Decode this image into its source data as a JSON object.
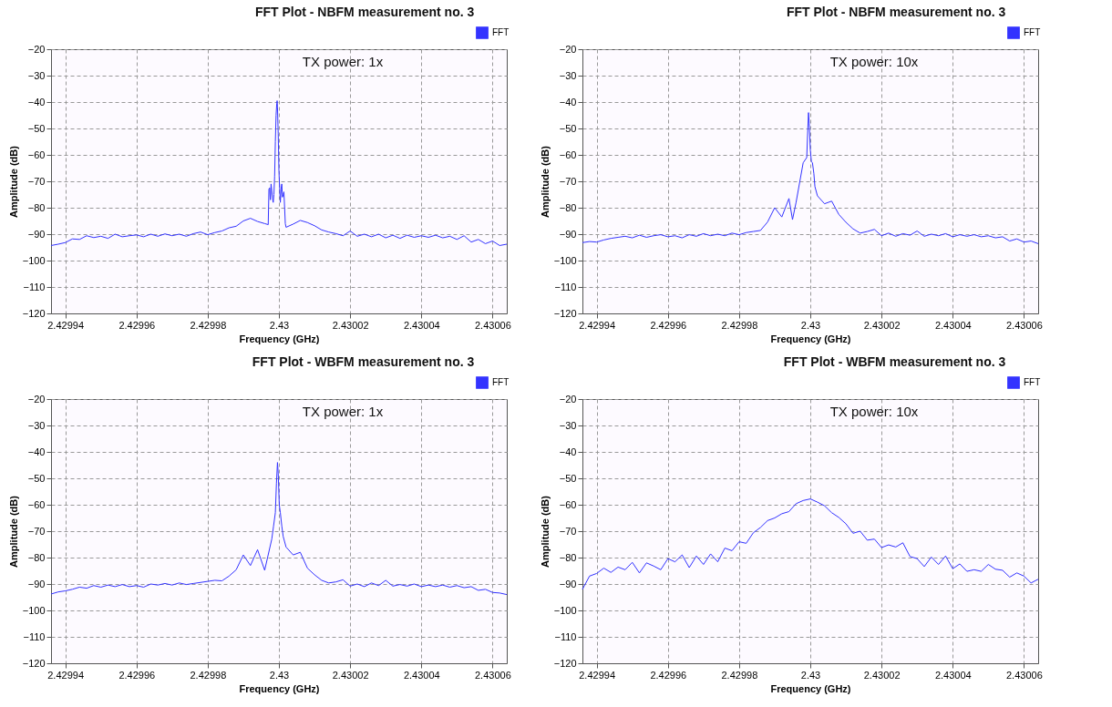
{
  "chart_data": [
    {
      "type": "line",
      "title": "FFT Plot - NBFM measurement no. 3",
      "xlabel": "Frequency (GHz)",
      "ylabel": "Amplitude (dB)",
      "annotations": [
        "TX power: 1x"
      ],
      "legend": "top right",
      "grid": true,
      "marker": "none",
      "line_style": "solid",
      "xlim": [
        2.429936,
        2.430064
      ],
      "ylim": [
        -120,
        -20
      ],
      "xticks": [
        2.42994,
        2.42996,
        2.42998,
        2.43,
        2.43002,
        2.43004,
        2.43006
      ],
      "yticks": [
        -120,
        -110,
        -100,
        -90,
        -80,
        -70,
        -60,
        -50,
        -40,
        -30,
        -20
      ],
      "x": [
        2.429936,
        2.429938,
        2.42994,
        2.429942,
        2.429944,
        2.429946,
        2.429948,
        2.42995,
        2.429952,
        2.429954,
        2.429956,
        2.429958,
        2.42996,
        2.429962,
        2.429964,
        2.429966,
        2.429968,
        2.42997,
        2.429972,
        2.429974,
        2.429976,
        2.429978,
        2.42998,
        2.429982,
        2.429984,
        2.429986,
        2.429988,
        2.42999,
        2.429992,
        2.429994,
        2.429996,
        2.429997,
        2.4299972,
        2.4299974,
        2.4299976,
        2.4299978,
        2.429998,
        2.4299982,
        2.4299984,
        2.4299986,
        2.4299988,
        2.429999,
        2.4299992,
        2.4299994,
        2.4299995,
        2.4299996,
        2.4299998,
        2.43,
        2.4300002,
        2.4300004,
        2.4300006,
        2.4300008,
        2.430001,
        2.4300012,
        2.4300014,
        2.4300016,
        2.4300018,
        2.430002,
        2.430004,
        2.430006,
        2.430008,
        2.43001,
        2.430012,
        2.430014,
        2.430016,
        2.430018,
        2.43002,
        2.430022,
        2.430024,
        2.430026,
        2.430028,
        2.43003,
        2.430032,
        2.430034,
        2.430036,
        2.430038,
        2.43004,
        2.430042,
        2.430044,
        2.430046,
        2.430048,
        2.43005,
        2.430052,
        2.430054,
        2.430056,
        2.430058,
        2.43006,
        2.430062,
        2.430064
      ],
      "series": [
        {
          "name": "FFT",
          "color": "#3333ff",
          "values": [
            -94.3,
            -93.8,
            -93.2,
            -91.8,
            -92.0,
            -90.6,
            -91.3,
            -90.8,
            -91.6,
            -90.0,
            -91.0,
            -90.6,
            -90.3,
            -91.0,
            -90.0,
            -90.8,
            -89.9,
            -90.6,
            -90.0,
            -90.8,
            -89.8,
            -89.2,
            -90.2,
            -89.4,
            -88.8,
            -87.6,
            -87.0,
            -85.0,
            -84.0,
            -85.2,
            -86.0,
            -86.4,
            -73,
            -72.5,
            -77,
            -71,
            -73.5,
            -76.5,
            -78,
            -75,
            -68,
            -55,
            -45,
            -40.5,
            -39.5,
            -42,
            -52,
            -66,
            -72.5,
            -78,
            -73,
            -71,
            -76,
            -75,
            -74,
            -80,
            -86,
            -87.4,
            -86.2,
            -84.8,
            -85.6,
            -86.8,
            -88.4,
            -89.2,
            -89.8,
            -90.6,
            -88.8,
            -90.8,
            -90.0,
            -91.0,
            -90.0,
            -91.4,
            -90.4,
            -91.6,
            -90.4,
            -91.2,
            -90.6,
            -91.2,
            -90.4,
            -91.4,
            -90.8,
            -92.0,
            -90.6,
            -93.0,
            -92.0,
            -93.6,
            -92.6,
            -94.3,
            -93.8
          ]
        }
      ]
    },
    {
      "type": "line",
      "title": "FFT Plot - NBFM measurement no. 3",
      "xlabel": "Frequency (GHz)",
      "ylabel": "Amplitude (dB)",
      "annotations": [
        "TX power: 10x"
      ],
      "legend": "top right",
      "grid": true,
      "marker": "none",
      "line_style": "solid",
      "xlim": [
        2.429936,
        2.430064
      ],
      "ylim": [
        -120,
        -20
      ],
      "xticks": [
        2.42994,
        2.42996,
        2.42998,
        2.43,
        2.43002,
        2.43004,
        2.43006
      ],
      "yticks": [
        -120,
        -110,
        -100,
        -90,
        -80,
        -70,
        -60,
        -50,
        -40,
        -30,
        -20
      ],
      "x": [
        2.429936,
        2.429938,
        2.42994,
        2.429942,
        2.429944,
        2.429946,
        2.429948,
        2.42995,
        2.429952,
        2.429954,
        2.429956,
        2.429958,
        2.42996,
        2.429962,
        2.429964,
        2.429966,
        2.429968,
        2.42997,
        2.429972,
        2.429974,
        2.429976,
        2.429978,
        2.42998,
        2.429982,
        2.429984,
        2.429986,
        2.429988,
        2.42999,
        2.429992,
        2.429994,
        2.429995,
        2.429996,
        2.429998,
        2.429999,
        2.4299993,
        2.4299995,
        2.4299997,
        2.43,
        2.4300003,
        2.4300006,
        2.430001,
        2.4300013,
        2.430002,
        2.430004,
        2.430006,
        2.430008,
        2.43001,
        2.430012,
        2.430014,
        2.430016,
        2.430018,
        2.43002,
        2.430022,
        2.430024,
        2.430026,
        2.430028,
        2.43003,
        2.430032,
        2.430034,
        2.430036,
        2.430038,
        2.43004,
        2.430042,
        2.430044,
        2.430046,
        2.430048,
        2.43005,
        2.430052,
        2.430054,
        2.430056,
        2.430058,
        2.43006,
        2.430062,
        2.430064
      ],
      "series": [
        {
          "name": "FFT",
          "color": "#3333ff",
          "values": [
            -93.2,
            -92.8,
            -93.0,
            -92.2,
            -91.6,
            -91.2,
            -90.8,
            -91.4,
            -90.4,
            -91.2,
            -90.6,
            -90.2,
            -91.0,
            -90.6,
            -91.4,
            -90.2,
            -90.8,
            -89.8,
            -90.6,
            -90.0,
            -90.6,
            -89.6,
            -90.2,
            -89.4,
            -89.0,
            -88.6,
            -85.4,
            -80.0,
            -83.5,
            -76.5,
            -84.5,
            -78,
            -63,
            -61,
            -50,
            -44,
            -48,
            -58,
            -62.5,
            -63,
            -67,
            -72,
            -75.5,
            -78.5,
            -77.5,
            -82.5,
            -85.5,
            -88.0,
            -89.6,
            -89.0,
            -88.2,
            -90.6,
            -89.6,
            -90.8,
            -89.8,
            -90.4,
            -88.8,
            -90.8,
            -90.0,
            -90.6,
            -89.8,
            -91.0,
            -90.2,
            -90.8,
            -90.2,
            -91.0,
            -90.6,
            -91.4,
            -91.0,
            -92.6,
            -91.8,
            -93.0,
            -92.6,
            -93.6
          ]
        }
      ]
    },
    {
      "type": "line",
      "title": "FFT Plot - WBFM measurement no. 3",
      "xlabel": "Frequency (GHz)",
      "ylabel": "Amplitude (dB)",
      "annotations": [
        "TX power: 1x"
      ],
      "legend": "top right",
      "grid": true,
      "marker": "none",
      "line_style": "solid",
      "xlim": [
        2.429936,
        2.430064
      ],
      "ylim": [
        -120,
        -20
      ],
      "xticks": [
        2.42994,
        2.42996,
        2.42998,
        2.43,
        2.43002,
        2.43004,
        2.43006
      ],
      "yticks": [
        -120,
        -110,
        -100,
        -90,
        -80,
        -70,
        -60,
        -50,
        -40,
        -30,
        -20
      ],
      "x": [
        2.429936,
        2.429938,
        2.42994,
        2.429942,
        2.429944,
        2.429946,
        2.429948,
        2.42995,
        2.429952,
        2.429954,
        2.429956,
        2.429958,
        2.42996,
        2.429962,
        2.429964,
        2.429966,
        2.429968,
        2.42997,
        2.429972,
        2.429974,
        2.429976,
        2.429978,
        2.42998,
        2.429982,
        2.429984,
        2.429986,
        2.429988,
        2.42999,
        2.429992,
        2.429994,
        2.429996,
        2.429998,
        2.4299985,
        2.429999,
        2.4299993,
        2.4299996,
        2.4299998,
        2.4300001,
        2.4300004,
        2.4300008,
        2.4300012,
        2.430002,
        2.430004,
        2.430006,
        2.430008,
        2.43001,
        2.430012,
        2.430014,
        2.430016,
        2.430018,
        2.43002,
        2.430022,
        2.430024,
        2.430026,
        2.430028,
        2.43003,
        2.430032,
        2.430034,
        2.430036,
        2.430038,
        2.43004,
        2.430042,
        2.430044,
        2.430046,
        2.430048,
        2.43005,
        2.430052,
        2.430054,
        2.430056,
        2.430058,
        2.43006,
        2.430062,
        2.430064
      ],
      "series": [
        {
          "name": "FFT",
          "color": "#3333ff",
          "values": [
            -93.8,
            -93.0,
            -92.6,
            -92.0,
            -91.2,
            -91.6,
            -90.6,
            -91.2,
            -90.4,
            -91.0,
            -90.2,
            -91.0,
            -90.6,
            -91.2,
            -90.0,
            -90.4,
            -89.8,
            -90.4,
            -89.6,
            -90.2,
            -89.8,
            -89.4,
            -89.0,
            -88.6,
            -88.8,
            -87.0,
            -84.6,
            -79.0,
            -83.0,
            -77.0,
            -84.8,
            -73.0,
            -68,
            -63,
            -52,
            -44,
            -48,
            -60,
            -63,
            -68,
            -72,
            -76,
            -79,
            -78,
            -84,
            -86.5,
            -88.6,
            -89.6,
            -89.2,
            -88.4,
            -90.8,
            -90.0,
            -91.0,
            -89.6,
            -90.6,
            -88.6,
            -90.8,
            -90.2,
            -90.8,
            -90.0,
            -91.0,
            -90.4,
            -91.0,
            -90.4,
            -91.2,
            -90.6,
            -91.4,
            -91.0,
            -92.4,
            -92.0,
            -93.2,
            -93.4,
            -94.0
          ]
        }
      ]
    },
    {
      "type": "line",
      "title": "FFT Plot - WBFM measurement no. 3",
      "xlabel": "Frequency (GHz)",
      "ylabel": "Amplitude (dB)",
      "annotations": [
        "TX power: 10x"
      ],
      "legend": "top right",
      "grid": true,
      "marker": "none",
      "line_style": "solid",
      "xlim": [
        2.429936,
        2.430064
      ],
      "ylim": [
        -120,
        -20
      ],
      "xticks": [
        2.42994,
        2.42996,
        2.42998,
        2.43,
        2.43002,
        2.43004,
        2.43006
      ],
      "yticks": [
        -120,
        -110,
        -100,
        -90,
        -80,
        -70,
        -60,
        -50,
        -40,
        -30,
        -20
      ],
      "x": [
        2.429936,
        2.429938,
        2.42994,
        2.429942,
        2.429944,
        2.429946,
        2.429948,
        2.42995,
        2.429952,
        2.429954,
        2.429956,
        2.429958,
        2.42996,
        2.429962,
        2.429964,
        2.429966,
        2.429968,
        2.42997,
        2.429972,
        2.429974,
        2.429976,
        2.429978,
        2.42998,
        2.429982,
        2.429984,
        2.429986,
        2.429988,
        2.42999,
        2.429992,
        2.429994,
        2.429996,
        2.429998,
        2.43,
        2.430002,
        2.430004,
        2.430006,
        2.430008,
        2.43001,
        2.430012,
        2.430014,
        2.430016,
        2.430018,
        2.43002,
        2.430022,
        2.430024,
        2.430026,
        2.430028,
        2.43003,
        2.430032,
        2.430034,
        2.430036,
        2.430038,
        2.43004,
        2.430042,
        2.430044,
        2.430046,
        2.430048,
        2.43005,
        2.430052,
        2.430054,
        2.430056,
        2.430058,
        2.43006,
        2.430062,
        2.430064
      ],
      "series": [
        {
          "name": "FFT",
          "color": "#3333ff",
          "values": [
            -92.0,
            -87.0,
            -86.0,
            -84.0,
            -85.6,
            -83.6,
            -84.6,
            -81.8,
            -85.8,
            -82.0,
            -83.2,
            -84.6,
            -80.4,
            -81.6,
            -79.0,
            -83.8,
            -79.4,
            -82.6,
            -78.6,
            -81.6,
            -76.4,
            -77.4,
            -74.0,
            -74.6,
            -70.6,
            -68.6,
            -66.0,
            -65.0,
            -63.4,
            -62.6,
            -59.6,
            -58.4,
            -57.8,
            -59.0,
            -60.4,
            -63.0,
            -64.8,
            -67.2,
            -70.8,
            -70.0,
            -73.4,
            -73.0,
            -76.2,
            -75.2,
            -76.0,
            -74.4,
            -79.6,
            -80.4,
            -83.4,
            -79.8,
            -82.6,
            -79.4,
            -84.2,
            -82.4,
            -85.2,
            -84.6,
            -85.2,
            -82.6,
            -84.4,
            -84.8,
            -87.4,
            -85.8,
            -87.0,
            -89.6,
            -88.2
          ]
        }
      ]
    }
  ]
}
